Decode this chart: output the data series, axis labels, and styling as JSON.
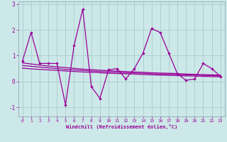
{
  "xlabel": "Windchill (Refroidissement éolien,°C)",
  "x": [
    0,
    1,
    2,
    3,
    4,
    5,
    6,
    7,
    8,
    9,
    10,
    11,
    12,
    13,
    14,
    15,
    16,
    17,
    18,
    19,
    20,
    21,
    22,
    23
  ],
  "y_main": [
    0.8,
    1.9,
    0.7,
    0.7,
    0.7,
    -0.9,
    1.4,
    2.8,
    -0.2,
    -0.65,
    0.45,
    0.5,
    0.1,
    0.5,
    1.1,
    2.05,
    1.9,
    1.1,
    0.3,
    0.05,
    0.1,
    0.7,
    0.5,
    0.2
  ],
  "y_trend1": [
    0.72,
    0.68,
    0.64,
    0.6,
    0.57,
    0.54,
    0.51,
    0.48,
    0.46,
    0.44,
    0.42,
    0.4,
    0.39,
    0.37,
    0.36,
    0.34,
    0.33,
    0.32,
    0.31,
    0.29,
    0.28,
    0.27,
    0.26,
    0.25
  ],
  "y_trend2": [
    0.62,
    0.59,
    0.56,
    0.53,
    0.5,
    0.47,
    0.45,
    0.43,
    0.41,
    0.39,
    0.37,
    0.36,
    0.34,
    0.33,
    0.32,
    0.3,
    0.29,
    0.28,
    0.27,
    0.26,
    0.25,
    0.24,
    0.23,
    0.22
  ],
  "y_trend3": [
    0.52,
    0.49,
    0.47,
    0.45,
    0.43,
    0.41,
    0.39,
    0.37,
    0.36,
    0.34,
    0.32,
    0.31,
    0.3,
    0.29,
    0.27,
    0.26,
    0.25,
    0.24,
    0.23,
    0.22,
    0.21,
    0.2,
    0.19,
    0.18
  ],
  "line_color": "#990099",
  "bg_color": "#cce8e8",
  "grid_color": "#aacccc",
  "spine_color": "#8899aa",
  "ylim": [
    -1.35,
    3.1
  ],
  "yticks": [
    -1,
    0,
    1,
    2,
    3
  ],
  "xticks": [
    0,
    1,
    2,
    3,
    4,
    5,
    6,
    7,
    8,
    9,
    10,
    11,
    12,
    13,
    14,
    15,
    16,
    17,
    18,
    19,
    20,
    21,
    22,
    23
  ]
}
